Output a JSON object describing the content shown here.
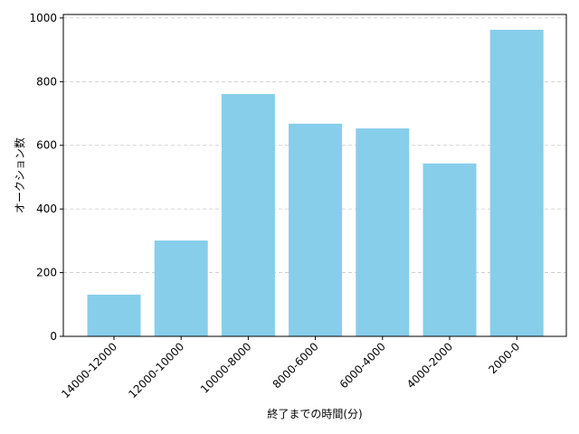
{
  "chart_data": {
    "type": "bar",
    "x_label": "終了までの時間(分)",
    "y_label": "オークション数",
    "categories": [
      "14000-12000",
      "12000-10000",
      "10000-8000",
      "8000-6000",
      "6000-4000",
      "4000-2000",
      "2000-0"
    ],
    "values": [
      131,
      301,
      761,
      668,
      653,
      543,
      963
    ],
    "color": "#87ceeb",
    "ylim": [
      0,
      1011
    ],
    "yticks": [
      0,
      200,
      400,
      600,
      800,
      1000
    ],
    "grid": true
  }
}
